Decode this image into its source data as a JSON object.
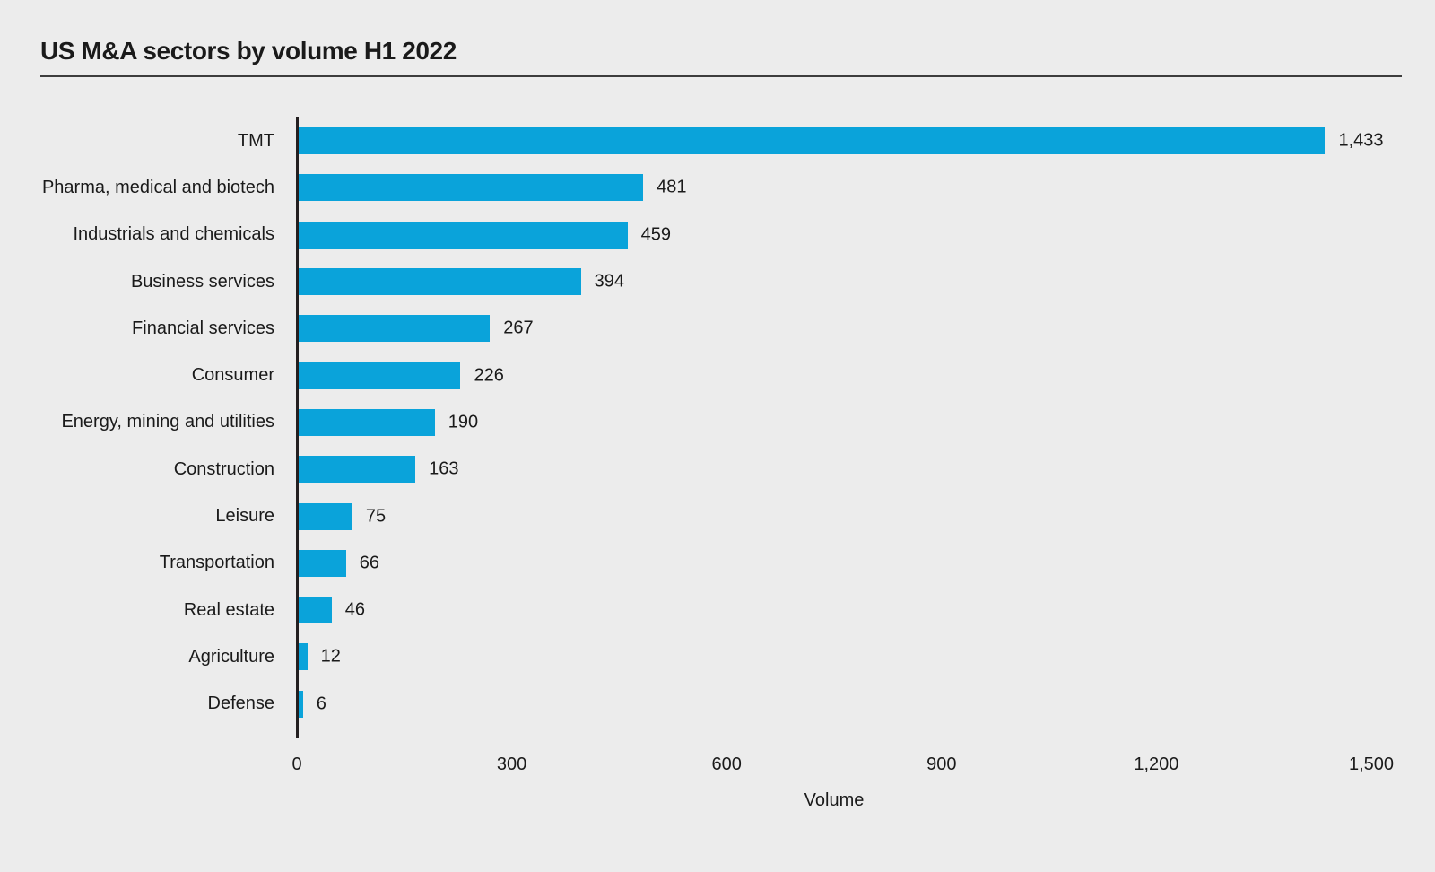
{
  "page": {
    "background_color": "#ececec",
    "text_color": "#1a1a1a"
  },
  "header": {
    "title": "US M&A sectors by volume H1 2022"
  },
  "chart_data": {
    "type": "bar",
    "orientation": "horizontal",
    "title": "US M&A sectors by volume H1 2022",
    "categories": [
      "TMT",
      "Pharma, medical and biotech",
      "Industrials and chemicals",
      "Business services",
      "Financial services",
      "Consumer",
      "Energy, mining and utilities",
      "Construction",
      "Leisure",
      "Transportation",
      "Real estate",
      "Agriculture",
      "Defense"
    ],
    "values": [
      1433,
      481,
      459,
      394,
      267,
      226,
      190,
      163,
      75,
      66,
      46,
      12,
      6
    ],
    "value_labels": [
      "1,433",
      "481",
      "459",
      "394",
      "267",
      "226",
      "190",
      "163",
      "75",
      "66",
      "46",
      "12",
      "6"
    ],
    "xlabel": "Volume",
    "ylabel": "",
    "xlim": [
      0,
      1500
    ],
    "x_tick_values": [
      0,
      300,
      600,
      900,
      1200,
      1500
    ],
    "x_ticks": [
      "0",
      "300",
      "600",
      "900",
      "1,200",
      "1,500"
    ],
    "bar_color": "#0aa3da",
    "axis_color": "#231f20",
    "grid": false,
    "legend": "none",
    "data_labels": true
  }
}
